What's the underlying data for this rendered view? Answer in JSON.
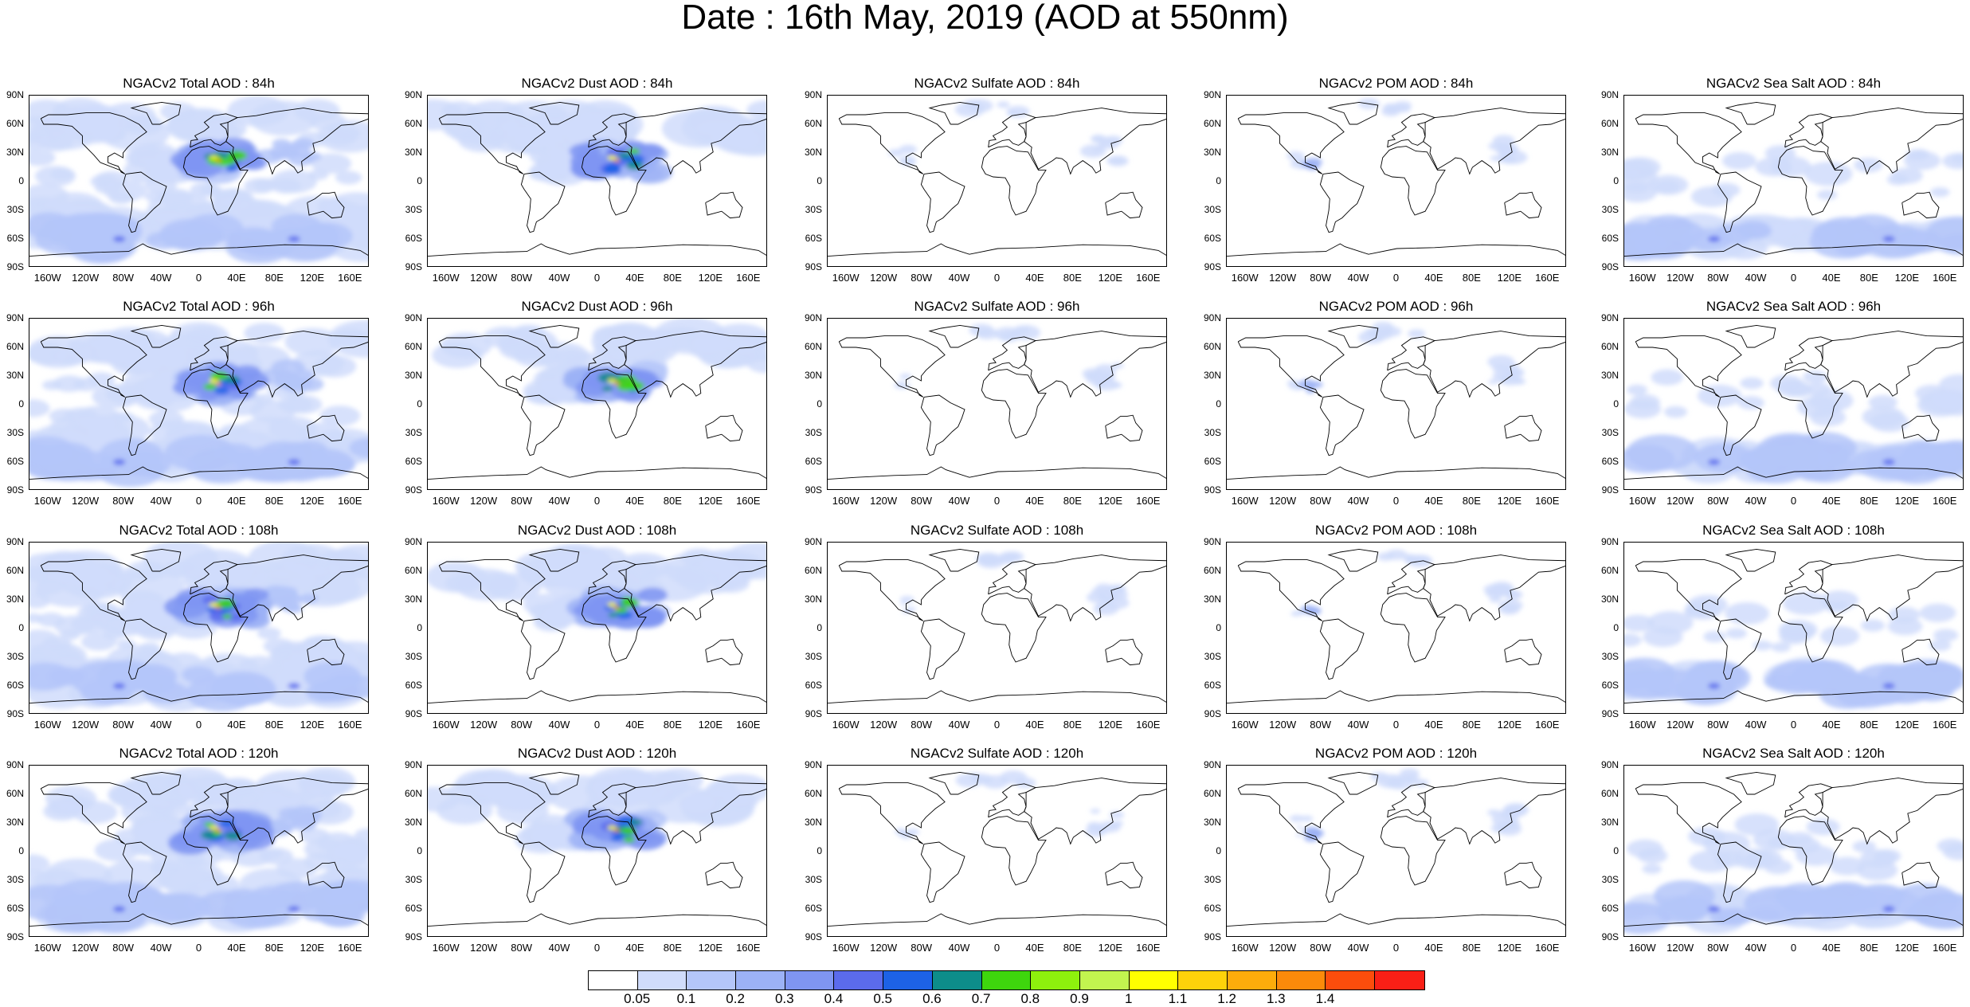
{
  "title": "Date : 16th May, 2019 (AOD at 550nm)",
  "lat_labels": [
    "90N",
    "60N",
    "30N",
    "0",
    "30S",
    "60S",
    "90S"
  ],
  "lon_labels": [
    "160W",
    "120W",
    "80W",
    "40W",
    "0",
    "40E",
    "80E",
    "120E",
    "160E"
  ],
  "panels": [
    {
      "title": "NGACv2 Total AOD : 84h",
      "type": "total"
    },
    {
      "title": "NGACv2 Dust AOD : 84h",
      "type": "dust"
    },
    {
      "title": "NGACv2 Sulfate AOD : 84h",
      "type": "sulfate"
    },
    {
      "title": "NGACv2 POM AOD : 84h",
      "type": "pom"
    },
    {
      "title": "NGACv2 Sea Salt AOD : 84h",
      "type": "seasalt"
    },
    {
      "title": "NGACv2 Total AOD : 96h",
      "type": "total"
    },
    {
      "title": "NGACv2 Dust AOD : 96h",
      "type": "dust"
    },
    {
      "title": "NGACv2 Sulfate AOD : 96h",
      "type": "sulfate"
    },
    {
      "title": "NGACv2 POM AOD : 96h",
      "type": "pom"
    },
    {
      "title": "NGACv2 Sea Salt AOD : 96h",
      "type": "seasalt"
    },
    {
      "title": "NGACv2 Total AOD : 108h",
      "type": "total"
    },
    {
      "title": "NGACv2 Dust AOD : 108h",
      "type": "dust"
    },
    {
      "title": "NGACv2 Sulfate AOD : 108h",
      "type": "sulfate"
    },
    {
      "title": "NGACv2 POM AOD : 108h",
      "type": "pom"
    },
    {
      "title": "NGACv2 Sea Salt AOD : 108h",
      "type": "seasalt"
    },
    {
      "title": "NGACv2 Total AOD : 120h",
      "type": "total"
    },
    {
      "title": "NGACv2 Dust AOD : 120h",
      "type": "dust"
    },
    {
      "title": "NGACv2 Sulfate AOD : 120h",
      "type": "sulfate"
    },
    {
      "title": "NGACv2 POM AOD : 120h",
      "type": "pom"
    },
    {
      "title": "NGACv2 Sea Salt  AOD : 120h",
      "type": "seasalt"
    }
  ],
  "colorbar": {
    "colors": [
      "#ffffff",
      "#d0dcfb",
      "#b4c6f9",
      "#9cb2f6",
      "#7f95f2",
      "#5b6bec",
      "#1d62e6",
      "#0d8d8a",
      "#3ed60d",
      "#8ef00d",
      "#c2f44f",
      "#ffff00",
      "#fed20a",
      "#fdac0b",
      "#fb8a0a",
      "#fc4d0c",
      "#f91f16"
    ],
    "labels": [
      "0.05",
      "0.1",
      "0.2",
      "0.3",
      "0.4",
      "0.5",
      "0.6",
      "0.7",
      "0.8",
      "0.9",
      "1",
      "1.1",
      "1.2",
      "1.3",
      "1.4"
    ]
  }
}
